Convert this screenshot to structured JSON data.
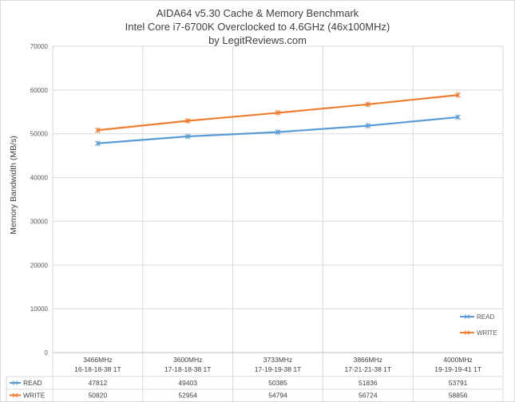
{
  "chart_data": {
    "type": "line",
    "title": "AIDA64 v5.30 Cache & Memory Benchmark",
    "subtitle": "Intel Core i7-6700K Overclocked to 4.6GHz (46x100MHz)",
    "subtitle2": "by LegitReviews.com",
    "ylabel": "Memory Bandwidth (MB/s)",
    "xlabel": "",
    "ylim": [
      0,
      70000
    ],
    "yticks": [
      "0",
      "10000",
      "20000",
      "30000",
      "40000",
      "50000",
      "60000",
      "70000"
    ],
    "categories": [
      [
        "3466MHz",
        "16-18-18-38 1T"
      ],
      [
        "3600MHz",
        "17-18-18-38 1T"
      ],
      [
        "3733MHz",
        "17-19-19-38 1T"
      ],
      [
        "3866MHz",
        "17-21-21-38 1T"
      ],
      [
        "4000MHz",
        "19-19-19-41 1T"
      ]
    ],
    "series": [
      {
        "name": "READ",
        "color": "#5b9bd5",
        "values": [
          47812,
          49403,
          50385,
          51836,
          53791
        ]
      },
      {
        "name": "WRITE",
        "color": "#ed7d31",
        "values": [
          50820,
          52954,
          54794,
          56724,
          58856
        ]
      }
    ],
    "grid": true,
    "legend": "bottom-right",
    "data_table": true
  }
}
